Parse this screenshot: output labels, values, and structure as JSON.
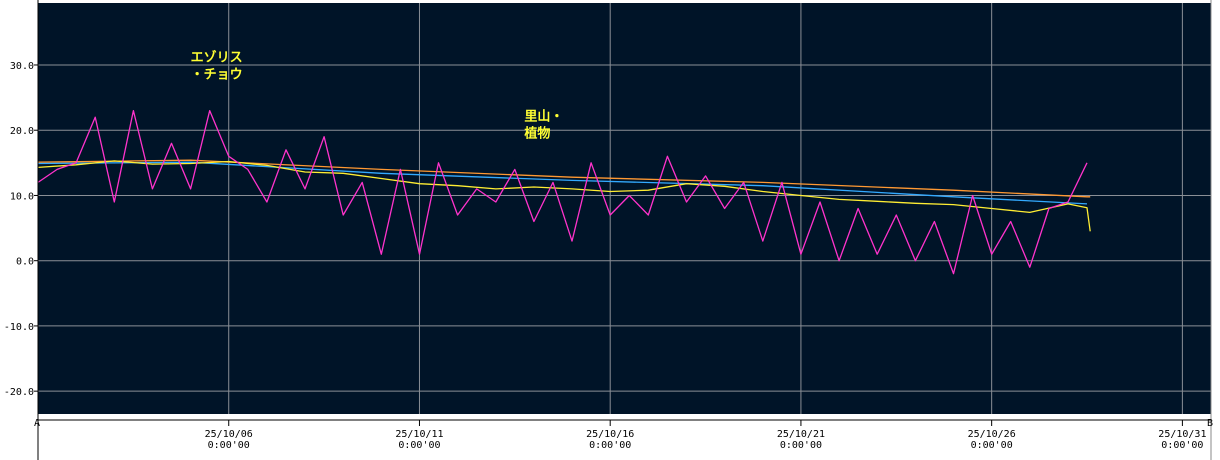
{
  "chart_data": {
    "type": "line",
    "title": "",
    "xlabel": "",
    "ylabel": "",
    "ylim": [
      -23.5,
      39.5
    ],
    "xlim": [
      "2025-10-01 00:00",
      "2025-10-31 18:00"
    ],
    "grid": true,
    "background": "#001428",
    "corner_labels": {
      "left": "A",
      "right": "B"
    },
    "y_ticks": [
      "30.0",
      "20.0",
      "10.0",
      "0.0",
      "-10.0",
      "-20.0"
    ],
    "y_tick_values": [
      30,
      20,
      10,
      0,
      -10,
      -20
    ],
    "x_ticks": [
      {
        "date": "25/10/06",
        "time": "0:00'00"
      },
      {
        "date": "25/10/11",
        "time": "0:00'00"
      },
      {
        "date": "25/10/16",
        "time": "0:00'00"
      },
      {
        "date": "25/10/21",
        "time": "0:00'00"
      },
      {
        "date": "25/10/26",
        "time": "0:00'00"
      },
      {
        "date": "25/10/31",
        "time": "0:00'00"
      }
    ],
    "x_tick_values": [
      "2025-10-06 00:00",
      "2025-10-11 00:00",
      "2025-10-16 00:00",
      "2025-10-21 00:00",
      "2025-10-26 00:00",
      "2025-10-31 00:00"
    ],
    "annotations": [
      {
        "lines": [
          "エゾリス",
          "・チョウ"
        ],
        "x": "2025-10-05 00:00",
        "y": 30.5
      },
      {
        "lines": [
          "里山・",
          "植物"
        ],
        "x": "2025-10-13 18:00",
        "y": 21.5
      }
    ],
    "series": [
      {
        "color": "#ff9933",
        "x": [
          "2025-10-01 00:00",
          "2025-10-05 00:00",
          "2025-10-10 00:00",
          "2025-10-15 00:00",
          "2025-10-20 00:00",
          "2025-10-25 00:00",
          "2025-10-28 12:00",
          "2025-10-28 14:00"
        ],
        "values": [
          15.1,
          15.4,
          14.0,
          12.8,
          12.0,
          10.8,
          9.8,
          9.8
        ]
      },
      {
        "color": "#33aaff",
        "x": [
          "2025-10-01 00:00",
          "2025-10-05 00:00",
          "2025-10-10 00:00",
          "2025-10-15 00:00",
          "2025-10-20 00:00",
          "2025-10-25 00:00",
          "2025-10-28 12:00"
        ],
        "values": [
          14.9,
          15.1,
          13.4,
          12.3,
          11.5,
          9.8,
          8.7
        ]
      },
      {
        "color": "#ffee33",
        "x": [
          "2025-10-01 00:00",
          "2025-10-02 00:00",
          "2025-10-03 00:00",
          "2025-10-04 00:00",
          "2025-10-05 00:00",
          "2025-10-06 00:00",
          "2025-10-07 00:00",
          "2025-10-08 00:00",
          "2025-10-09 00:00",
          "2025-10-10 00:00",
          "2025-10-11 00:00",
          "2025-10-12 00:00",
          "2025-10-13 00:00",
          "2025-10-14 00:00",
          "2025-10-15 00:00",
          "2025-10-16 00:00",
          "2025-10-17 00:00",
          "2025-10-18 00:00",
          "2025-10-19 00:00",
          "2025-10-20 00:00",
          "2025-10-21 00:00",
          "2025-10-22 00:00",
          "2025-10-23 00:00",
          "2025-10-24 00:00",
          "2025-10-25 00:00",
          "2025-10-26 00:00",
          "2025-10-27 00:00",
          "2025-10-28 00:00",
          "2025-10-28 12:00",
          "2025-10-28 14:00"
        ],
        "values": [
          14.3,
          14.7,
          15.3,
          14.8,
          14.9,
          15.2,
          14.6,
          13.6,
          13.4,
          12.6,
          11.8,
          11.5,
          11.0,
          11.3,
          11.0,
          10.6,
          10.8,
          11.8,
          11.4,
          10.6,
          10.0,
          9.4,
          9.1,
          8.8,
          8.6,
          8.0,
          7.4,
          8.7,
          8.1,
          4.5
        ]
      },
      {
        "color": "#ff33cc",
        "x": [
          "2025-10-01 00:00",
          "2025-10-01 12:00",
          "2025-10-02 00:00",
          "2025-10-02 12:00",
          "2025-10-03 00:00",
          "2025-10-03 12:00",
          "2025-10-04 00:00",
          "2025-10-04 12:00",
          "2025-10-05 00:00",
          "2025-10-05 12:00",
          "2025-10-06 00:00",
          "2025-10-06 12:00",
          "2025-10-07 00:00",
          "2025-10-07 12:00",
          "2025-10-08 00:00",
          "2025-10-08 12:00",
          "2025-10-09 00:00",
          "2025-10-09 12:00",
          "2025-10-10 00:00",
          "2025-10-10 12:00",
          "2025-10-11 00:00",
          "2025-10-11 12:00",
          "2025-10-12 00:00",
          "2025-10-12 12:00",
          "2025-10-13 00:00",
          "2025-10-13 12:00",
          "2025-10-14 00:00",
          "2025-10-14 12:00",
          "2025-10-15 00:00",
          "2025-10-15 12:00",
          "2025-10-16 00:00",
          "2025-10-16 12:00",
          "2025-10-17 00:00",
          "2025-10-17 12:00",
          "2025-10-18 00:00",
          "2025-10-18 12:00",
          "2025-10-19 00:00",
          "2025-10-19 12:00",
          "2025-10-20 00:00",
          "2025-10-20 12:00",
          "2025-10-21 00:00",
          "2025-10-21 12:00",
          "2025-10-22 00:00",
          "2025-10-22 12:00",
          "2025-10-23 00:00",
          "2025-10-23 12:00",
          "2025-10-24 00:00",
          "2025-10-24 12:00",
          "2025-10-25 00:00",
          "2025-10-25 12:00",
          "2025-10-26 00:00",
          "2025-10-26 12:00",
          "2025-10-27 00:00",
          "2025-10-27 12:00",
          "2025-10-28 00:00",
          "2025-10-28 12:00"
        ],
        "values": [
          12,
          14,
          15,
          22,
          9,
          23,
          11,
          18,
          11,
          23,
          16,
          14,
          9,
          17,
          11,
          19,
          7,
          12,
          1,
          14,
          1,
          15,
          7,
          11,
          9,
          14,
          6,
          12,
          3,
          15,
          7,
          10,
          7,
          16,
          9,
          13,
          8,
          12,
          3,
          12,
          1,
          9,
          0,
          8,
          1,
          7,
          0,
          6,
          -2,
          10,
          1,
          6,
          -1,
          8,
          9,
          15
        ]
      }
    ]
  }
}
